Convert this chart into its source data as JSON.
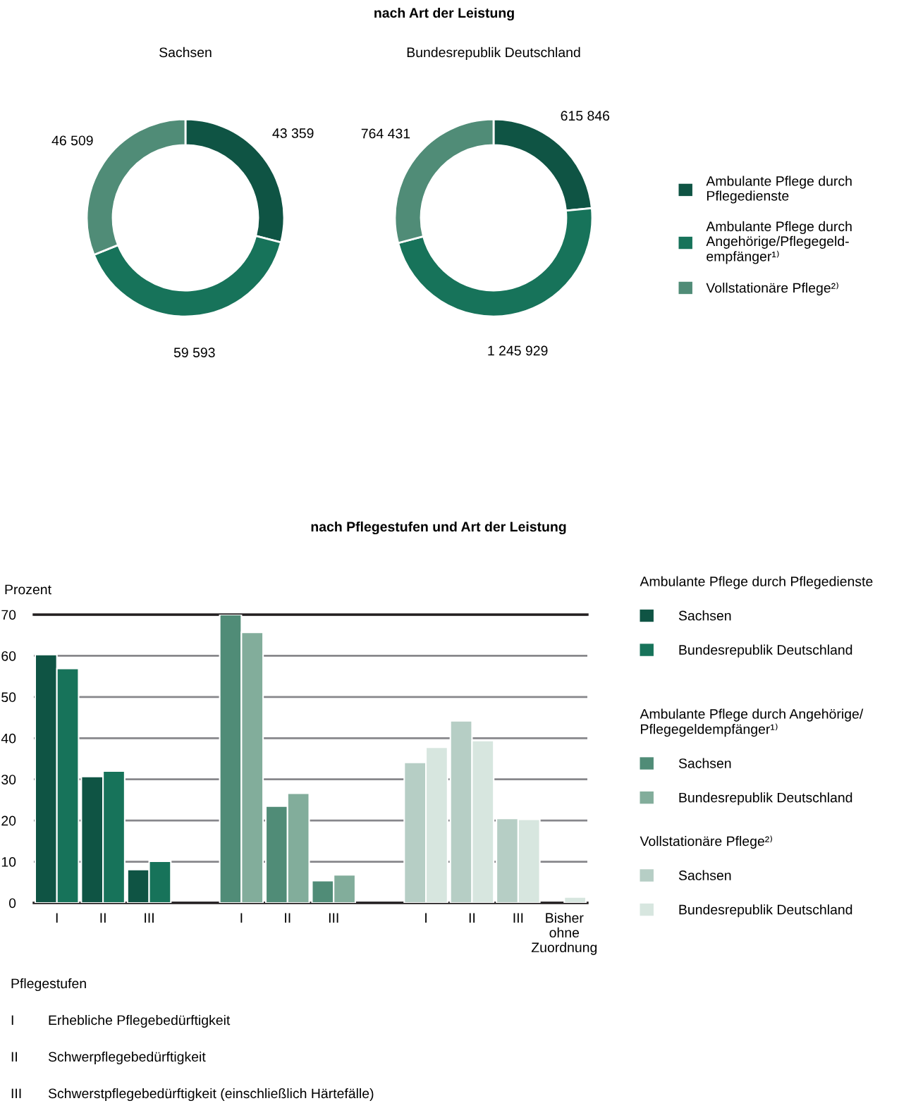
{
  "chart_data": [
    {
      "type": "donut",
      "title": "Sachsen",
      "annotations": [
        "nach Art der Leistung"
      ],
      "categories": [
        "Ambulante Pflege durch\nPflegedienste",
        "Ambulante Pflege durch\nAngehörige/Pflegegeld-\nempfänger¹⁾",
        "Vollstationäre Pflege²⁾"
      ],
      "values": [
        43359,
        59593,
        46509
      ],
      "value_labels": [
        "43 359",
        "59 593",
        "46 509"
      ],
      "colors": [
        "#0f5444",
        "#17735a",
        "#508c77"
      ],
      "legend": "right"
    },
    {
      "type": "donut",
      "title": "Bundesrepublik Deutschland",
      "categories": [
        null,
        null,
        null
      ],
      "values": [
        615846,
        1245929,
        764431
      ],
      "value_labels": [
        "615 846",
        "1 245 929",
        "764 431"
      ],
      "colors": [
        "#0f5444",
        "#17735a",
        "#508c77"
      ]
    },
    {
      "type": "bar",
      "title": "nach Pflegestufen und Art der Leistung",
      "ylabel": "Prozent",
      "categories": [
        "I",
        "II",
        "III",
        null,
        "I",
        "II",
        "III",
        null,
        "I",
        "II",
        "III",
        "Bisher ohne Zuordnung"
      ],
      "series": [
        {
          "name": "Sachsen",
          "color": "#0f5444",
          "values": [
            60.3,
            30.7,
            8.1,
            null,
            null,
            null,
            null,
            null,
            null,
            null,
            null,
            null
          ]
        },
        {
          "name": "Bundesrepublik Deutschland",
          "color": "#17735a",
          "values": [
            56.9,
            32.0,
            10.1,
            null,
            null,
            null,
            null,
            null,
            null,
            null,
            null,
            null
          ]
        },
        {
          "name": "Sachsen",
          "color": "#508c77",
          "values": [
            null,
            null,
            null,
            null,
            70.0,
            23.5,
            5.4,
            null,
            null,
            null,
            null,
            null
          ]
        },
        {
          "name": "Bundesrepublik Deutschland",
          "color": "#82ad9b",
          "values": [
            null,
            null,
            null,
            null,
            65.7,
            26.6,
            6.8,
            null,
            null,
            null,
            null,
            null
          ]
        },
        {
          "name": "Sachsen",
          "color": "#b6cec5",
          "values": [
            null,
            null,
            null,
            null,
            null,
            null,
            null,
            null,
            34.1,
            44.2,
            20.5,
            null
          ]
        },
        {
          "name": "Bundesrepublik Deutschland",
          "color": "#d7e6df",
          "values": [
            null,
            null,
            null,
            null,
            null,
            null,
            null,
            null,
            37.8,
            39.4,
            20.3,
            1.4
          ]
        }
      ],
      "ylim": [
        0,
        70
      ],
      "yticks": [
        0,
        10,
        20,
        30,
        40,
        50,
        60,
        70
      ],
      "grid": "y",
      "legend": "right",
      "annotations": [
        "Ambulante Pflege durch Pflegedienste",
        "Ambulante Pflege durch Angehörige/\nPflegegeldempfänger¹⁾",
        "Vollstationäre Pflege²⁾",
        "Pflegestufen",
        "I",
        "Erhebliche Pflegebedürftigkeit",
        "II",
        "Schwerpflegebedürftigkeit",
        "III",
        "Schwerstpflegebedürftigkeit (einschließlich Härtefälle)"
      ]
    }
  ]
}
